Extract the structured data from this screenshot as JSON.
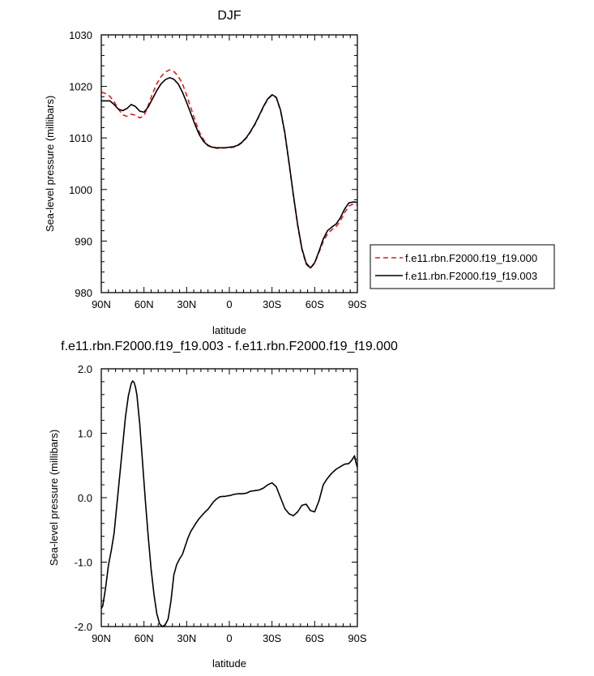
{
  "chart_data": [
    {
      "type": "line",
      "title": "DJF",
      "xlabel": "latitude",
      "ylabel": "Sea-level pressure (millibars)",
      "xlim": [
        90,
        -90
      ],
      "ylim": [
        980,
        1030
      ],
      "xticks": [
        90,
        60,
        30,
        0,
        -30,
        -60,
        -90
      ],
      "xtick_labels": [
        "90N",
        "60N",
        "30N",
        "0",
        "30S",
        "60S",
        "90S"
      ],
      "yticks": [
        980,
        990,
        1000,
        1010,
        1020,
        1030
      ],
      "ytick_labels": [
        "980",
        "990",
        "1000",
        "1010",
        "1020",
        "1030"
      ],
      "legend_position": "right",
      "series": [
        {
          "name": "f.e11.rbn.F2000.f19_f19.000",
          "color": "#e41a1c",
          "dash": "dashed",
          "x": [
            90,
            87,
            84,
            81,
            78,
            75,
            72,
            69,
            66,
            63,
            60,
            57,
            54,
            51,
            48,
            45,
            42,
            39,
            36,
            33,
            30,
            27,
            24,
            21,
            18,
            15,
            12,
            9,
            6,
            3,
            0,
            -3,
            -6,
            -9,
            -12,
            -15,
            -18,
            -21,
            -24,
            -27,
            -30,
            -33,
            -36,
            -39,
            -42,
            -45,
            -48,
            -51,
            -54,
            -57,
            -60,
            -63,
            -66,
            -69,
            -72,
            -75,
            -78,
            -81,
            -84,
            -87,
            -90
          ],
          "y": [
            1018.9,
            1018.6,
            1018.1,
            1017.0,
            1015.6,
            1014.5,
            1014.2,
            1014.6,
            1014.4,
            1013.9,
            1014.3,
            1016.3,
            1018.6,
            1020.5,
            1021.9,
            1022.8,
            1023.2,
            1022.9,
            1022.0,
            1020.5,
            1018.3,
            1015.8,
            1013.3,
            1011.1,
            1009.6,
            1008.6,
            1008.2,
            1008.0,
            1008.0,
            1008.1,
            1008.1,
            1008.2,
            1008.5,
            1009.1,
            1010.0,
            1011.2,
            1012.6,
            1014.3,
            1016.0,
            1017.5,
            1018.3,
            1017.8,
            1015.3,
            1010.8,
            1005.0,
            998.8,
            993.0,
            988.4,
            985.5,
            984.7,
            985.7,
            987.8,
            989.9,
            991.4,
            992.2,
            992.8,
            993.9,
            995.5,
            996.8,
            997.2,
            997.0
          ]
        },
        {
          "name": "f.e11.rbn.F2000.f19_f19.003",
          "color": "#000000",
          "dash": "solid",
          "x": [
            90,
            87,
            84,
            81,
            78,
            75,
            72,
            69,
            66,
            63,
            60,
            57,
            54,
            51,
            48,
            45,
            42,
            39,
            36,
            33,
            30,
            27,
            24,
            21,
            18,
            15,
            12,
            9,
            6,
            3,
            0,
            -3,
            -6,
            -9,
            -12,
            -15,
            -18,
            -21,
            -24,
            -27,
            -30,
            -33,
            -36,
            -39,
            -42,
            -45,
            -48,
            -51,
            -54,
            -57,
            -60,
            -63,
            -66,
            -69,
            -72,
            -75,
            -78,
            -81,
            -84,
            -87,
            -90
          ],
          "y": [
            1017.2,
            1017.2,
            1017.2,
            1016.5,
            1015.6,
            1015.3,
            1015.7,
            1016.5,
            1016.1,
            1015.2,
            1015.0,
            1016.0,
            1017.6,
            1019.2,
            1020.5,
            1021.3,
            1021.7,
            1021.4,
            1020.5,
            1018.9,
            1016.9,
            1014.7,
            1012.5,
            1010.6,
            1009.3,
            1008.5,
            1008.2,
            1008.1,
            1008.1,
            1008.1,
            1008.2,
            1008.3,
            1008.6,
            1009.2,
            1010.1,
            1011.3,
            1012.7,
            1014.4,
            1016.1,
            1017.6,
            1018.4,
            1017.9,
            1015.4,
            1011.0,
            1005.2,
            999.0,
            993.2,
            988.6,
            985.7,
            984.8,
            985.8,
            988.0,
            990.4,
            992.0,
            992.7,
            993.3,
            994.5,
            996.2,
            997.4,
            997.6,
            997.5
          ]
        }
      ]
    },
    {
      "type": "line",
      "title": "f.e11.rbn.F2000.f19_f19.003 - f.e11.rbn.F2000.f19_f19.000",
      "xlabel": "latitude",
      "ylabel": "Sea-level pressure (millibars)",
      "xlim": [
        90,
        -90
      ],
      "ylim": [
        -2.0,
        2.0
      ],
      "xticks": [
        90,
        60,
        30,
        0,
        -30,
        -60,
        -90
      ],
      "xtick_labels": [
        "90N",
        "60N",
        "30N",
        "0",
        "30S",
        "60S",
        "90S"
      ],
      "yticks": [
        -2.0,
        -1.0,
        0.0,
        1.0,
        2.0
      ],
      "ytick_labels": [
        "-2.0",
        "-1.0",
        "0.0",
        "1.0",
        "2.0"
      ],
      "series": [
        {
          "color": "#000000",
          "dash": "solid",
          "x": [
            90,
            89,
            87,
            85,
            83,
            81,
            79,
            77,
            75,
            73,
            71,
            69,
            68,
            67,
            66,
            65,
            63,
            61,
            59,
            57,
            55,
            53,
            51,
            49,
            47,
            45,
            43,
            41,
            39,
            37,
            35,
            33,
            31,
            29,
            27,
            25,
            23,
            21,
            19,
            17,
            15,
            13,
            11,
            9,
            7,
            5,
            3,
            1,
            0,
            -3,
            -6,
            -9,
            -12,
            -15,
            -18,
            -21,
            -24,
            -27,
            -30,
            -33,
            -36,
            -39,
            -42,
            -45,
            -48,
            -51,
            -54,
            -57,
            -60,
            -63,
            -66,
            -69,
            -72,
            -75,
            -78,
            -81,
            -84,
            -86,
            -88,
            -89,
            -90
          ],
          "y": [
            -1.72,
            -1.68,
            -1.4,
            -1.05,
            -0.82,
            -0.55,
            -0.1,
            0.35,
            0.8,
            1.25,
            1.58,
            1.77,
            1.81,
            1.79,
            1.72,
            1.6,
            1.15,
            0.55,
            -0.05,
            -0.6,
            -1.1,
            -1.5,
            -1.8,
            -1.96,
            -2.0,
            -1.97,
            -1.88,
            -1.6,
            -1.2,
            -1.04,
            -0.95,
            -0.88,
            -0.75,
            -0.62,
            -0.52,
            -0.45,
            -0.38,
            -0.32,
            -0.27,
            -0.22,
            -0.18,
            -0.12,
            -0.06,
            -0.02,
            0.01,
            0.02,
            0.02,
            0.03,
            0.03,
            0.05,
            0.06,
            0.06,
            0.07,
            0.1,
            0.11,
            0.12,
            0.15,
            0.2,
            0.23,
            0.17,
            0.0,
            -0.17,
            -0.25,
            -0.28,
            -0.22,
            -0.12,
            -0.1,
            -0.2,
            -0.22,
            -0.05,
            0.2,
            0.3,
            0.38,
            0.44,
            0.48,
            0.52,
            0.53,
            0.58,
            0.65,
            0.55,
            0.47
          ]
        }
      ]
    }
  ]
}
